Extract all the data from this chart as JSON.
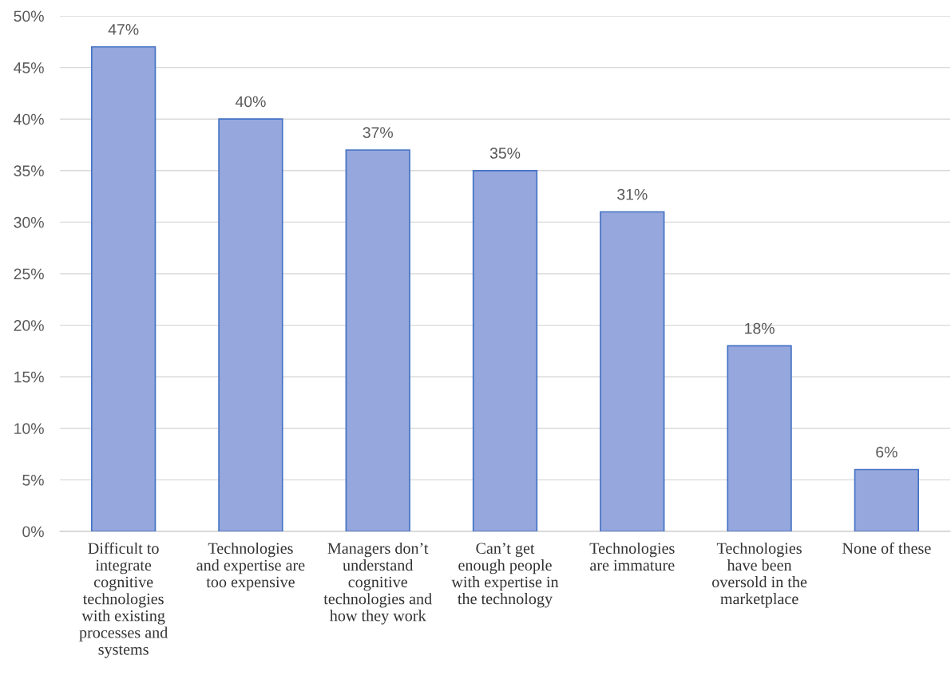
{
  "chart_data": {
    "type": "bar",
    "categories": [
      "Difficult to\nintegrate\ncognitive\ntechnologies\nwith existing\nprocesses and\nsystems",
      "Technologies\nand expertise are\ntoo expensive",
      "Managers don’t\nunderstand\ncognitive\ntechnologies and\nhow they work",
      "Can’t get\nenough people\nwith expertise in\nthe technology",
      "Technologies\nare immature",
      "Technologies\nhave been\noversold in the\nmarketplace",
      "None of these"
    ],
    "values": [
      47,
      40,
      37,
      35,
      31,
      18,
      6
    ],
    "value_labels": [
      "47%",
      "40%",
      "37%",
      "35%",
      "31%",
      "18%",
      "6%"
    ],
    "color": "#95a7dc",
    "ylim": [
      0,
      50
    ],
    "yticks": [
      {
        "value": 0,
        "label": "0%"
      },
      {
        "value": 5,
        "label": "5%"
      },
      {
        "value": 10,
        "label": "10%"
      },
      {
        "value": 15,
        "label": "15%"
      },
      {
        "value": 20,
        "label": "20%"
      },
      {
        "value": 25,
        "label": "25%"
      },
      {
        "value": 30,
        "label": "30%"
      },
      {
        "value": 35,
        "label": "35%"
      },
      {
        "value": 40,
        "label": "40%"
      },
      {
        "value": 45,
        "label": "45%"
      },
      {
        "value": 50,
        "label": "50%"
      }
    ],
    "grid": "y"
  }
}
